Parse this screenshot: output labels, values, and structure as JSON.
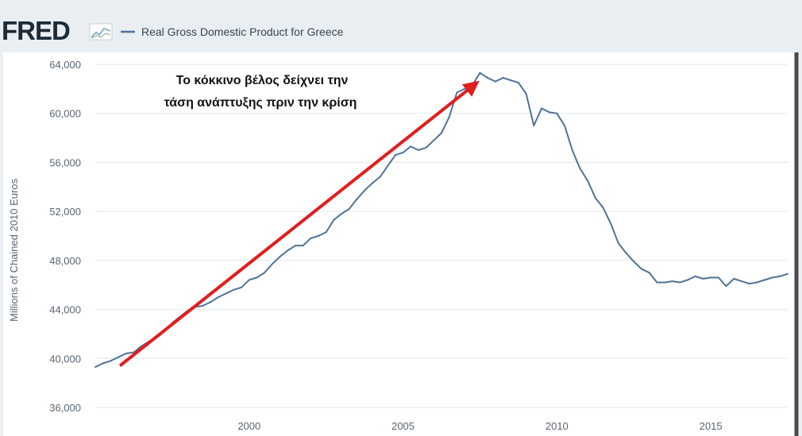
{
  "logo": {
    "text": "FRED",
    "icon": "line-chart-icon"
  },
  "chart_data": {
    "type": "line",
    "legend": "Real Gross Domestic Product for Greece",
    "title": "",
    "xlabel": "",
    "ylabel": "Millions of Chained 2010 Euros",
    "ylim": [
      36000,
      64000
    ],
    "y_ticks": [
      36000,
      40000,
      44000,
      48000,
      52000,
      56000,
      60000,
      64000
    ],
    "y_tick_labels": [
      "36,000",
      "40,000",
      "44,000",
      "48,000",
      "52,000",
      "56,000",
      "60,000",
      "64,000"
    ],
    "xlim": [
      1995.0,
      2017.5
    ],
    "x_ticks": [
      2000,
      2005,
      2010,
      2015
    ],
    "x_tick_labels": [
      "2000",
      "2005",
      "2010",
      "2015"
    ],
    "grid": true,
    "legend_placement": "top",
    "series": [
      {
        "name": "Real Gross Domestic Product for Greece",
        "color": "#4f7296",
        "x": [
          1995.0,
          1995.25,
          1995.5,
          1995.75,
          1996.0,
          1996.25,
          1996.5,
          1996.75,
          1997.0,
          1997.25,
          1997.5,
          1997.75,
          1998.0,
          1998.25,
          1998.5,
          1998.75,
          1999.0,
          1999.25,
          1999.5,
          1999.75,
          2000.0,
          2000.25,
          2000.5,
          2000.75,
          2001.0,
          2001.25,
          2001.5,
          2001.75,
          2002.0,
          2002.25,
          2002.5,
          2002.75,
          2003.0,
          2003.25,
          2003.5,
          2003.75,
          2004.0,
          2004.25,
          2004.5,
          2004.75,
          2005.0,
          2005.25,
          2005.5,
          2005.75,
          2006.0,
          2006.25,
          2006.5,
          2006.75,
          2007.0,
          2007.25,
          2007.5,
          2007.75,
          2008.0,
          2008.25,
          2008.5,
          2008.75,
          2009.0,
          2009.25,
          2009.5,
          2009.75,
          2010.0,
          2010.25,
          2010.5,
          2010.75,
          2011.0,
          2011.25,
          2011.5,
          2011.75,
          2012.0,
          2012.25,
          2012.5,
          2012.75,
          2013.0,
          2013.25,
          2013.5,
          2013.75,
          2014.0,
          2014.25,
          2014.5,
          2014.75,
          2015.0,
          2015.25,
          2015.5,
          2015.75,
          2016.0,
          2016.25,
          2016.5,
          2016.75,
          2017.0,
          2017.25,
          2017.5
        ],
        "values": [
          39300,
          39600,
          39800,
          40100,
          40400,
          40500,
          41000,
          41400,
          41700,
          42200,
          42900,
          43400,
          43900,
          44200,
          44300,
          44600,
          45000,
          45300,
          45600,
          45800,
          46400,
          46600,
          47000,
          47700,
          48300,
          48800,
          49200,
          49200,
          49800,
          50000,
          50300,
          51300,
          51800,
          52200,
          53000,
          53700,
          54300,
          54800,
          55700,
          56600,
          56800,
          57300,
          57000,
          57200,
          57800,
          58400,
          59700,
          61700,
          62000,
          62300,
          63300,
          62900,
          62600,
          62900,
          62700,
          62500,
          61600,
          59000,
          60400,
          60100,
          60000,
          59000,
          57000,
          55500,
          54500,
          53100,
          52300,
          51000,
          49400,
          48600,
          47900,
          47300,
          47000,
          46200,
          46200,
          46300,
          46200,
          46400,
          46700,
          46500,
          46600,
          46600,
          45900,
          46500,
          46300,
          46100,
          46200,
          46400,
          46600,
          46700,
          46900
        ]
      }
    ],
    "annotation": {
      "lines": [
        "Το κόκκινο βέλος δείχνει την",
        "τάση ανάπτυξης πριν την κρίση"
      ],
      "arrow_from": {
        "x": 1995.8,
        "y": 39400
      },
      "arrow_to": {
        "x": 2007.4,
        "y": 62500
      },
      "arrow_color": "#e01e1e"
    }
  }
}
